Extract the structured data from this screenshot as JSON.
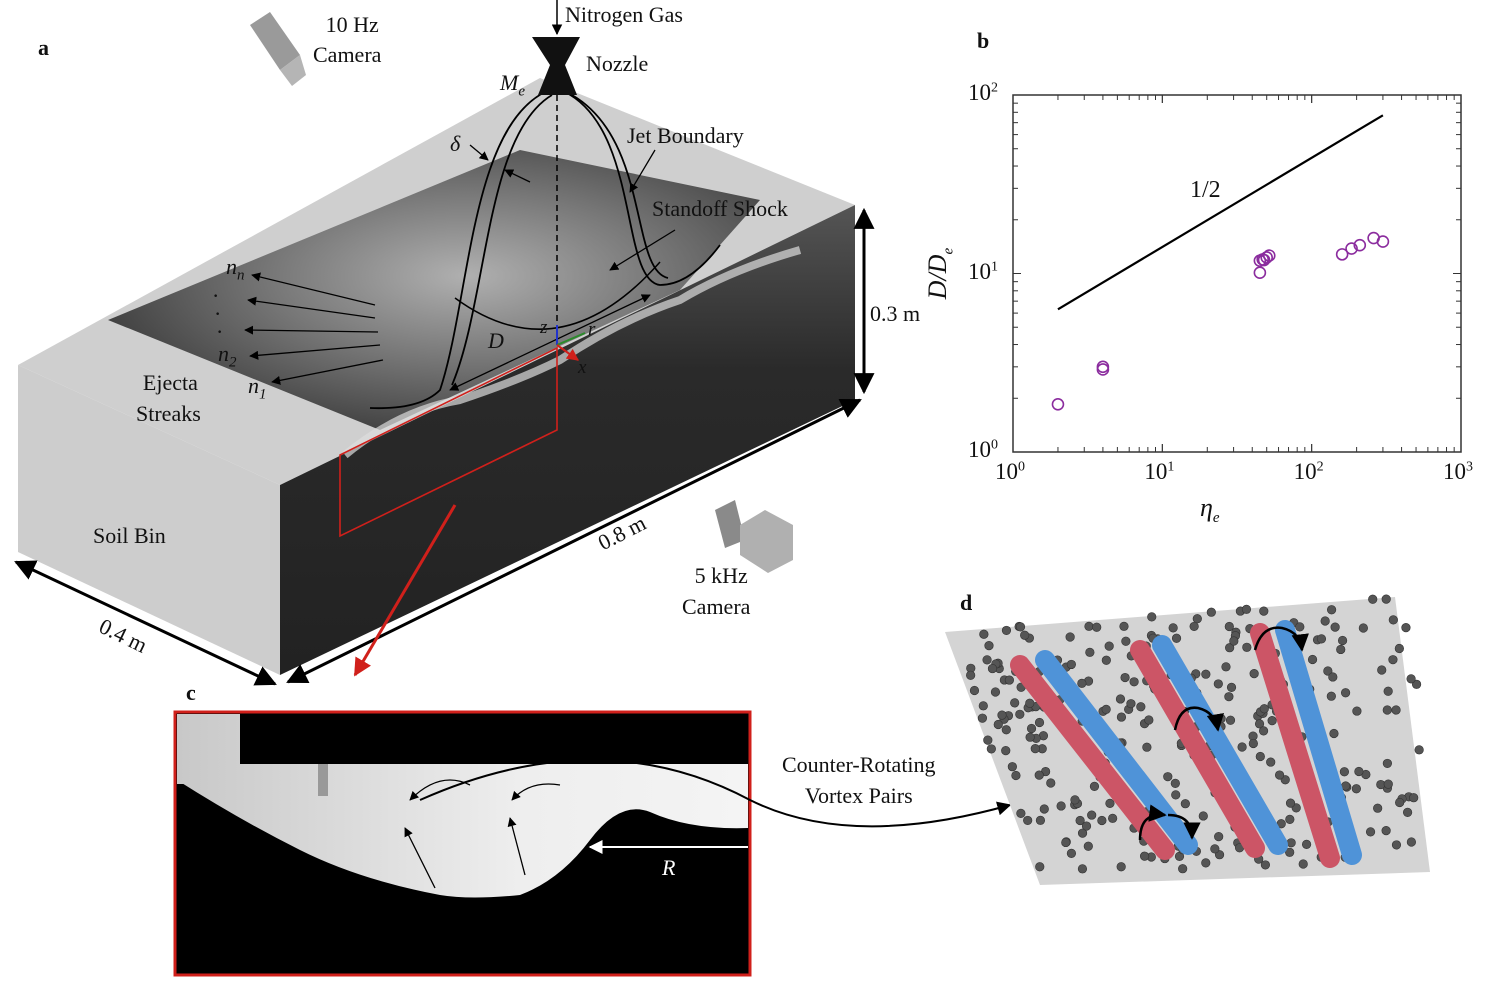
{
  "panels": {
    "a": "a",
    "b": "b",
    "c": "c",
    "d": "d"
  },
  "panel_a": {
    "nitrogen_gas": "Nitrogen Gas",
    "nozzle": "Nozzle",
    "exit_mach": "M",
    "exit_mach_sub": "e",
    "camera_10hz_line1": "10 Hz",
    "camera_10hz_line2": "Camera",
    "jet_boundary": "Jet Boundary",
    "standoff_shock": "Standoff Shock",
    "delta": "δ",
    "streak_n": "n",
    "streak_n_sub": "n",
    "streak_2": "n",
    "streak_2_sub": "2",
    "streak_1": "n",
    "streak_1_sub": "1",
    "ellipsis": "·",
    "ejecta_line1": "Ejecta",
    "ejecta_line2": "Streaks",
    "diameter": "D",
    "axis_z": "z",
    "axis_r": "r",
    "axis_x": "x",
    "height": "0.3 m",
    "length": "0.8 m",
    "width": "0.4 m",
    "soil_bin": "Soil Bin",
    "camera_5khz_line1": "5 kHz",
    "camera_5khz_line2": "Camera"
  },
  "panel_c": {
    "radius": "R",
    "crvp_line1": "Counter-Rotating",
    "crvp_line2": "Vortex Pairs"
  },
  "colors": {
    "marker": "#8b2c9e",
    "highlight_box": "#d0201b",
    "vortex_red": "#cc5566",
    "vortex_blue": "#4f93d8"
  },
  "chart_data": {
    "type": "scatter",
    "xlabel": "η",
    "xlabel_sub": "e",
    "ylabel": "D/D",
    "ylabel_sub": "e",
    "x_scale": "log",
    "y_scale": "log",
    "xlim": [
      1,
      1000
    ],
    "ylim": [
      1,
      100
    ],
    "x_ticks": [
      {
        "base": "10",
        "exp": "0"
      },
      {
        "base": "10",
        "exp": "1"
      },
      {
        "base": "10",
        "exp": "2"
      },
      {
        "base": "10",
        "exp": "3"
      }
    ],
    "y_ticks": [
      {
        "base": "10",
        "exp": "0"
      },
      {
        "base": "10",
        "exp": "1"
      },
      {
        "base": "10",
        "exp": "2"
      }
    ],
    "grid": false,
    "marker": "open-circle",
    "points": [
      {
        "x": 2,
        "y": 1.85
      },
      {
        "x": 4,
        "y": 3.0
      },
      {
        "x": 4,
        "y": 2.9
      },
      {
        "x": 45,
        "y": 10.1
      },
      {
        "x": 45,
        "y": 11.8
      },
      {
        "x": 47,
        "y": 12.0
      },
      {
        "x": 48,
        "y": 11.9
      },
      {
        "x": 50,
        "y": 12.3
      },
      {
        "x": 52,
        "y": 12.6
      },
      {
        "x": 160,
        "y": 12.8
      },
      {
        "x": 185,
        "y": 13.8
      },
      {
        "x": 210,
        "y": 14.4
      },
      {
        "x": 260,
        "y": 15.8
      },
      {
        "x": 300,
        "y": 15.1
      }
    ],
    "reference_line": {
      "label": "1/2",
      "slope": 0.5,
      "x": [
        2,
        300
      ],
      "y": [
        6.3,
        77
      ]
    }
  }
}
